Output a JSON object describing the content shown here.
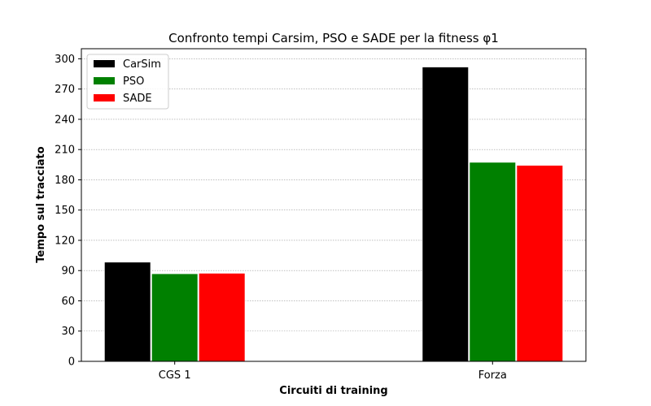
{
  "chart_data": {
    "type": "bar",
    "title": "Confronto tempi Carsim, PSO e SADE per la fitness φ1",
    "xlabel": "Circuiti di training",
    "ylabel": "Tempo sul tracciato",
    "categories": [
      "CGS 1",
      "Forza"
    ],
    "series": [
      {
        "name": "CarSim",
        "color": "#000000",
        "values": [
          98.5,
          292
        ]
      },
      {
        "name": "PSO",
        "color": "#008000",
        "values": [
          87,
          197.5
        ]
      },
      {
        "name": "SADE",
        "color": "#ff0000",
        "values": [
          87.5,
          194.5
        ]
      }
    ],
    "ylim": [
      0,
      310
    ],
    "yticks": [
      "0",
      "30",
      "60",
      "90",
      "120",
      "150",
      "180",
      "210",
      "240",
      "270",
      "300"
    ],
    "grid": "horizontal dotted",
    "legend_position": "top-left"
  }
}
